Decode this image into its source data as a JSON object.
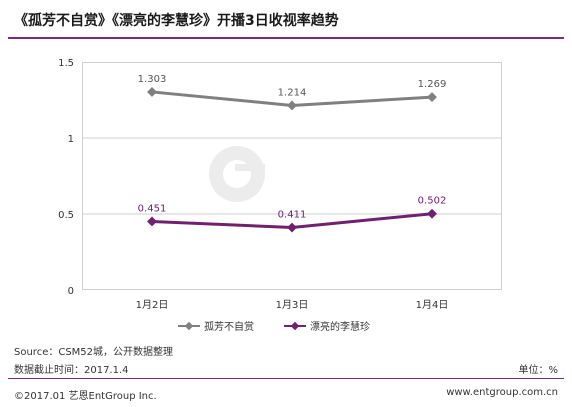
{
  "header": {
    "title": "《孤芳不自赏》《漂亮的李慧珍》开播3日收视率趋势"
  },
  "watermark": {
    "brand_cn": "艺恩",
    "brand_en": "entgroup"
  },
  "chart_data": {
    "type": "line",
    "title": "《孤芳不自赏》《漂亮的李慧珍》开播3日收视率趋势",
    "categories": [
      "1月2日",
      "1月3日",
      "1月4日"
    ],
    "ylim": [
      0,
      1.5
    ],
    "yticks": [
      "0",
      "0.5",
      "1",
      "1.5"
    ],
    "grid": true,
    "legend_position": "bottom",
    "series": [
      {
        "name": "孤芳不自赏",
        "values": [
          1.303,
          1.214,
          1.269
        ],
        "labels": [
          "1.303",
          "1.214",
          "1.269"
        ],
        "color": "#808080"
      },
      {
        "name": "漂亮的李慧珍",
        "values": [
          0.451,
          0.411,
          0.502
        ],
        "labels": [
          "0.451",
          "0.411",
          "0.502"
        ],
        "color": "#70206f"
      }
    ]
  },
  "footer": {
    "source": "Source：CSM52城，公开数据整理",
    "cutoff": "数据截止时间：2017.1.4",
    "unit": "单位：%",
    "copyright": "©2017.01 艺恩EntGroup Inc.",
    "url": "www.entgroup.com.cn"
  },
  "colors": {
    "accent": "#7b2a7e",
    "series1": "#808080",
    "series2": "#70206f",
    "grid": "#cfcfcf"
  }
}
